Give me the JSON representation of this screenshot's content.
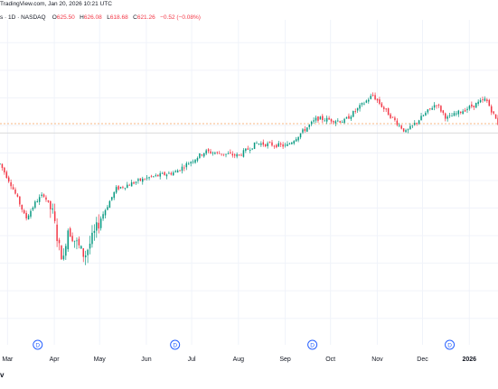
{
  "header": {
    "source_line": "TradingView.com, Jan 20, 2026 10:21 UTC",
    "title_fragment": "s · 1D · NASDAQ",
    "ohlc": {
      "o_label": "O",
      "o_value": "625.50",
      "h_label": "H",
      "h_value": "626.08",
      "l_label": "L",
      "l_value": "618.68",
      "c_label": "C",
      "c_value": "621.26",
      "change": "−0.52 (−0.08%)"
    }
  },
  "footer": {
    "logo_text": "v"
  },
  "colors": {
    "up": "#089981",
    "down": "#f23645",
    "grid": "#f0f3fa",
    "axis_text": "#131722",
    "hline_current": "#f7a35c",
    "hline_ref": "#d6d6d6",
    "event_badge": "#2962ff"
  },
  "chart_data": {
    "type": "candlestick",
    "x_range": [
      "2025-02-24",
      "2026-01-20"
    ],
    "ylim": [
      470,
      690
    ],
    "grid": true,
    "x_tick_labels": [
      "Mar",
      "Apr",
      "May",
      "Jun",
      "Jul",
      "Aug",
      "Sep",
      "Oct",
      "Nov",
      "Dec",
      "2026"
    ],
    "x_tick_dates": [
      "2025-03-01",
      "2025-04-01",
      "2025-05-01",
      "2025-06-01",
      "2025-07-01",
      "2025-08-01",
      "2025-09-01",
      "2025-10-01",
      "2025-11-01",
      "2025-12-01",
      "2026-01-01"
    ],
    "event_markers": [
      {
        "label": "D",
        "date": "2025-03-21"
      },
      {
        "label": "D",
        "date": "2025-06-20"
      },
      {
        "label": "D",
        "date": "2025-09-19"
      },
      {
        "label": "D",
        "date": "2025-12-19"
      }
    ],
    "reference_lines": [
      {
        "value": 621.26,
        "style": "current"
      },
      {
        "value": 614.5,
        "style": "ref"
      }
    ],
    "keypoints": [
      [
        "2025-02-24",
        592
      ],
      [
        "2025-03-03",
        578
      ],
      [
        "2025-03-10",
        561
      ],
      [
        "2025-03-13",
        552
      ],
      [
        "2025-03-20",
        565
      ],
      [
        "2025-03-25",
        570
      ],
      [
        "2025-03-31",
        556
      ],
      [
        "2025-04-04",
        532
      ],
      [
        "2025-04-08",
        520
      ],
      [
        "2025-04-09",
        547
      ],
      [
        "2025-04-21",
        525
      ],
      [
        "2025-05-02",
        553
      ],
      [
        "2025-05-12",
        574
      ],
      [
        "2025-06-02",
        582
      ],
      [
        "2025-06-20",
        586
      ],
      [
        "2025-07-10",
        601
      ],
      [
        "2025-08-01",
        598
      ],
      [
        "2025-08-13",
        607
      ],
      [
        "2025-09-02",
        605
      ],
      [
        "2025-09-22",
        625
      ],
      [
        "2025-10-10",
        623
      ],
      [
        "2025-10-29",
        642
      ],
      [
        "2025-11-07",
        630
      ],
      [
        "2025-11-20",
        615
      ],
      [
        "2025-12-10",
        636
      ],
      [
        "2025-12-17",
        625
      ],
      [
        "2026-01-12",
        639
      ],
      [
        "2026-01-20",
        621.26
      ]
    ],
    "candle_count": 228
  }
}
